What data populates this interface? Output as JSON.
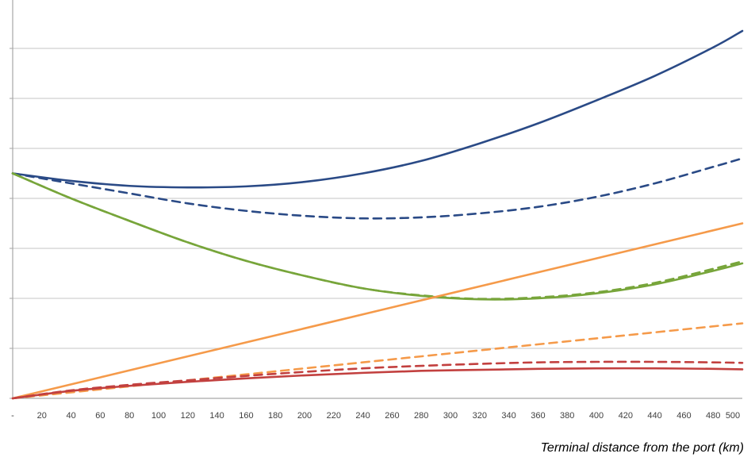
{
  "chart_data": {
    "type": "line",
    "title": "",
    "xlabel": "Terminal distance from the port (km)",
    "ylabel": "",
    "x_tick_labels": [
      "-",
      "20",
      "40",
      "60",
      "80",
      "100",
      "120",
      "140",
      "160",
      "180",
      "200",
      "220",
      "240",
      "260",
      "280",
      "300",
      "320",
      "340",
      "360",
      "380",
      "400",
      "420",
      "440",
      "460",
      "480",
      "500"
    ],
    "xlim": [
      0,
      500
    ],
    "ylim": [
      0,
      8
    ],
    "y_gridlines": [
      1,
      2,
      3,
      4,
      5,
      6,
      7,
      8
    ],
    "y_tick_labels_visible": false,
    "grid": true,
    "legend": "none",
    "colors": {
      "blue": "#2a4a86",
      "green": "#77a53a",
      "orange": "#f59a4a",
      "red": "#c2403f",
      "grid": "#d0d0d0",
      "axis": "#a6a6a6"
    },
    "series": [
      {
        "color": "blue",
        "dash": false,
        "x": [
          0,
          40,
          80,
          120,
          160,
          200,
          240,
          280,
          320,
          360,
          400,
          440,
          480,
          500
        ],
        "y": [
          4.5,
          4.35,
          4.25,
          4.22,
          4.24,
          4.33,
          4.5,
          4.75,
          5.1,
          5.5,
          5.96,
          6.45,
          7.02,
          7.35
        ]
      },
      {
        "color": "blue",
        "dash": true,
        "x": [
          0,
          40,
          80,
          120,
          160,
          200,
          240,
          280,
          320,
          360,
          400,
          440,
          480,
          500
        ],
        "y": [
          4.5,
          4.3,
          4.1,
          3.9,
          3.75,
          3.65,
          3.6,
          3.62,
          3.7,
          3.83,
          4.03,
          4.3,
          4.63,
          4.8
        ]
      },
      {
        "color": "green",
        "dash": false,
        "x": [
          0,
          40,
          80,
          120,
          160,
          200,
          240,
          280,
          320,
          360,
          400,
          440,
          480,
          500
        ],
        "y": [
          4.5,
          4.0,
          3.55,
          3.12,
          2.75,
          2.45,
          2.2,
          2.05,
          1.98,
          2.0,
          2.1,
          2.28,
          2.55,
          2.7
        ]
      },
      {
        "color": "green",
        "dash": true,
        "x": [
          0,
          40,
          80,
          120,
          160,
          200,
          240,
          280,
          320,
          360,
          400,
          440,
          480,
          500
        ],
        "y": [
          4.5,
          4.0,
          3.55,
          3.12,
          2.75,
          2.45,
          2.2,
          2.06,
          1.99,
          2.02,
          2.12,
          2.31,
          2.59,
          2.74
        ]
      },
      {
        "color": "orange",
        "dash": false,
        "x": [
          0,
          100,
          200,
          300,
          400,
          500
        ],
        "y": [
          0,
          0.7,
          1.4,
          2.1,
          2.8,
          3.5
        ]
      },
      {
        "color": "orange",
        "dash": true,
        "x": [
          0,
          100,
          200,
          300,
          400,
          500
        ],
        "y": [
          0,
          0.3,
          0.6,
          0.9,
          1.2,
          1.5
        ]
      },
      {
        "color": "red",
        "dash": false,
        "x": [
          0,
          40,
          80,
          120,
          160,
          200,
          240,
          280,
          320,
          360,
          400,
          440,
          480,
          500
        ],
        "y": [
          0,
          0.15,
          0.25,
          0.33,
          0.4,
          0.46,
          0.51,
          0.55,
          0.57,
          0.59,
          0.6,
          0.6,
          0.59,
          0.58
        ]
      },
      {
        "color": "red",
        "dash": true,
        "x": [
          0,
          40,
          80,
          120,
          160,
          200,
          240,
          280,
          320,
          360,
          400,
          440,
          480,
          500
        ],
        "y": [
          0,
          0.16,
          0.27,
          0.36,
          0.45,
          0.53,
          0.6,
          0.65,
          0.69,
          0.72,
          0.73,
          0.73,
          0.72,
          0.71
        ]
      }
    ]
  }
}
